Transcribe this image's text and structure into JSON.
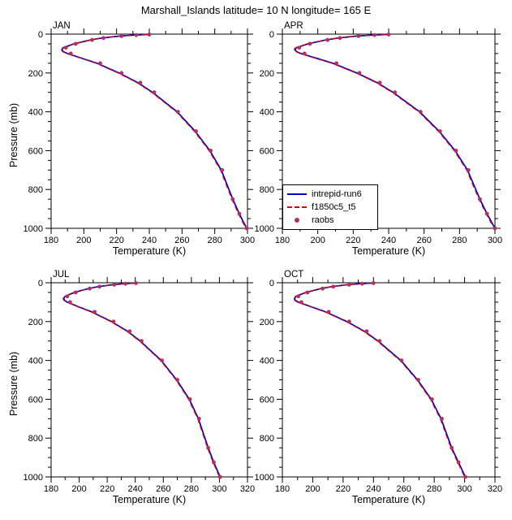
{
  "title": "Marshall_Islands  latitude= 10 N longitude= 165 E",
  "xlabel": "Temperature (K)",
  "ylabel": "Pressure (mb)",
  "legend": {
    "items": [
      {
        "label": "intrepid-run6",
        "style": "solid",
        "color": "#0000C8"
      },
      {
        "label": "f1850c5_t5",
        "style": "dashed",
        "color": "#DC0000"
      },
      {
        "label": "raobs",
        "style": "dot",
        "color": "#B03060"
      }
    ]
  },
  "chart_data": [
    {
      "type": "line",
      "label": "JAN",
      "xlabel": "Temperature (K)",
      "ylabel": "Pressure (mb)",
      "xlim": [
        180,
        300
      ],
      "xticks": [
        180,
        200,
        220,
        240,
        260,
        280,
        300
      ],
      "ylim": [
        0,
        1000
      ],
      "yticks": [
        0,
        200,
        400,
        600,
        800,
        1000
      ],
      "pressure": [
        2,
        5,
        10,
        20,
        30,
        50,
        70,
        80,
        90,
        100,
        125,
        150,
        200,
        250,
        300,
        400,
        500,
        600,
        700,
        775,
        850,
        925,
        1000
      ],
      "series": [
        {
          "name": "intrepid-run6",
          "color": "#0000C8",
          "style": "solid",
          "values": [
            239,
            231,
            222,
            211,
            204,
            194,
            187.5,
            186.5,
            187.5,
            190,
            199,
            208,
            221.5,
            233,
            242,
            257,
            268,
            277,
            284,
            287.5,
            291,
            295,
            299.5
          ]
        },
        {
          "name": "f1850c5_t5",
          "color": "#DC0000",
          "style": "dashed",
          "values": [
            238.5,
            230.5,
            221.5,
            210.5,
            203.5,
            193.5,
            187,
            186,
            187,
            189.5,
            198.5,
            207.5,
            221,
            232.5,
            241.5,
            256.5,
            267.5,
            276.5,
            283.5,
            287,
            290.5,
            294.5,
            299
          ]
        }
      ],
      "obs": {
        "name": "raobs",
        "color": "#B03060",
        "pressure": [
          2,
          5,
          10,
          20,
          30,
          50,
          70,
          100,
          150,
          200,
          250,
          300,
          400,
          500,
          600,
          700,
          850,
          925,
          1000
        ],
        "values": [
          240,
          232,
          223,
          212,
          205,
          195,
          189,
          192,
          210,
          223,
          234.5,
          243,
          257.5,
          268.5,
          277.5,
          284.5,
          291,
          295,
          299.5
        ]
      }
    },
    {
      "type": "line",
      "label": "APR",
      "xlabel": "Temperature (K)",
      "xlim": [
        180,
        300
      ],
      "xticks": [
        180,
        200,
        220,
        240,
        260,
        280,
        300
      ],
      "ylim": [
        0,
        1000
      ],
      "yticks": [
        0,
        200,
        400,
        600,
        800,
        1000
      ],
      "pressure": [
        2,
        5,
        10,
        20,
        30,
        50,
        70,
        80,
        90,
        100,
        125,
        150,
        200,
        250,
        300,
        400,
        500,
        600,
        700,
        775,
        850,
        925,
        1000
      ],
      "series": [
        {
          "name": "intrepid-run6",
          "color": "#0000C8",
          "style": "solid",
          "values": [
            239,
            231,
            222,
            211.5,
            204.5,
            194.5,
            188,
            187,
            188,
            190.5,
            199.5,
            208.5,
            222,
            233.5,
            242.5,
            257.5,
            268.5,
            277.5,
            284.5,
            288,
            291.5,
            295.5,
            300
          ]
        },
        {
          "name": "f1850c5_t5",
          "color": "#DC0000",
          "style": "dashed",
          "values": [
            238.5,
            230.5,
            221.5,
            211,
            204,
            194,
            187.5,
            186.5,
            187.5,
            190,
            199,
            208,
            221.5,
            233,
            242,
            257,
            268,
            277,
            284,
            287.5,
            291,
            295,
            299.5
          ]
        }
      ],
      "obs": {
        "name": "raobs",
        "color": "#B03060",
        "pressure": [
          2,
          5,
          10,
          20,
          30,
          50,
          70,
          100,
          150,
          200,
          250,
          300,
          400,
          500,
          600,
          700,
          850,
          925,
          1000
        ],
        "values": [
          240,
          232,
          223,
          212.5,
          205.5,
          195.5,
          189.5,
          192.5,
          210.5,
          223.5,
          235,
          243.5,
          258,
          269,
          278,
          285,
          291.5,
          295.5,
          300
        ]
      }
    },
    {
      "type": "line",
      "label": "JUL",
      "xlabel": "Temperature (K)",
      "ylabel": "Pressure (mb)",
      "xlim": [
        180,
        320
      ],
      "xticks": [
        180,
        200,
        220,
        240,
        260,
        280,
        300,
        320
      ],
      "ylim": [
        0,
        1000
      ],
      "yticks": [
        0,
        200,
        400,
        600,
        800,
        1000
      ],
      "pressure": [
        2,
        5,
        10,
        20,
        30,
        50,
        70,
        80,
        90,
        100,
        125,
        150,
        200,
        250,
        300,
        400,
        500,
        600,
        700,
        775,
        850,
        925,
        1000
      ],
      "series": [
        {
          "name": "intrepid-run6",
          "color": "#0000C8",
          "style": "solid",
          "values": [
            239.5,
            232,
            224,
            213.5,
            206.5,
            196.5,
            190,
            189,
            189.5,
            191.5,
            200,
            209,
            223,
            234.5,
            243.5,
            258.5,
            269.5,
            278.5,
            285,
            288.5,
            292,
            296,
            300.5
          ]
        },
        {
          "name": "f1850c5_t5",
          "color": "#DC0000",
          "style": "dashed",
          "values": [
            239,
            231.5,
            223.5,
            213,
            206,
            196,
            189.5,
            188.5,
            189,
            191,
            199.5,
            208.5,
            222.5,
            234,
            243,
            258,
            269,
            278,
            284.5,
            288,
            291.5,
            295.5,
            300
          ]
        }
      ],
      "obs": {
        "name": "raobs",
        "color": "#B03060",
        "pressure": [
          2,
          5,
          10,
          20,
          30,
          50,
          70,
          100,
          150,
          200,
          250,
          300,
          400,
          500,
          600,
          700,
          850,
          925,
          1000
        ],
        "values": [
          240.5,
          233,
          225,
          214.5,
          207.5,
          197.5,
          191.5,
          193.5,
          211,
          224.5,
          236,
          244.5,
          259,
          270,
          279,
          285.5,
          292,
          296,
          300.5
        ]
      }
    },
    {
      "type": "line",
      "label": "OCT",
      "xlabel": "Temperature (K)",
      "xlim": [
        180,
        320
      ],
      "xticks": [
        180,
        200,
        220,
        240,
        260,
        280,
        300,
        320
      ],
      "ylim": [
        0,
        1000
      ],
      "yticks": [
        0,
        200,
        400,
        600,
        800,
        1000
      ],
      "pressure": [
        2,
        5,
        10,
        20,
        30,
        50,
        70,
        80,
        90,
        100,
        125,
        150,
        200,
        250,
        300,
        400,
        500,
        600,
        700,
        775,
        850,
        925,
        1000
      ],
      "series": [
        {
          "name": "intrepid-run6",
          "color": "#0000C8",
          "style": "solid",
          "values": [
            239,
            231.5,
            223,
            212.5,
            205.5,
            195.5,
            189,
            188,
            188.5,
            190.5,
            199.5,
            208.5,
            222.5,
            234,
            243,
            258,
            269,
            278,
            284.5,
            288,
            291.5,
            296,
            300.5
          ]
        },
        {
          "name": "f1850c5_t5",
          "color": "#DC0000",
          "style": "dashed",
          "values": [
            238.5,
            231,
            222.5,
            212,
            205,
            195,
            188.5,
            187.5,
            188,
            190,
            199,
            208,
            222,
            233.5,
            242.5,
            257.5,
            268.5,
            277.5,
            284,
            287.5,
            291,
            295.5,
            300
          ]
        }
      ],
      "obs": {
        "name": "raobs",
        "color": "#B03060",
        "pressure": [
          2,
          5,
          10,
          20,
          30,
          50,
          70,
          100,
          150,
          200,
          250,
          300,
          400,
          500,
          600,
          700,
          850,
          925,
          1000
        ],
        "values": [
          240,
          232.5,
          224,
          213.5,
          206.5,
          196.5,
          190.5,
          192.5,
          210.5,
          224,
          235.5,
          244,
          258.5,
          269.5,
          278.5,
          285,
          291.5,
          296,
          300.5
        ]
      }
    }
  ]
}
